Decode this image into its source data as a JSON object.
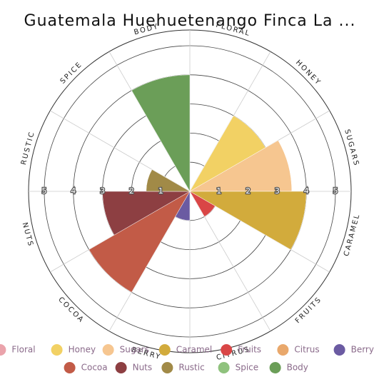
{
  "chart_data": {
    "type": "polar-area",
    "title": "Guatemala Huehuetenango Finca La ...",
    "categories": [
      "Floral",
      "Honey",
      "Sugars",
      "Caramel",
      "Fruits",
      "Citrus",
      "Berry",
      "Cocoa",
      "Nuts",
      "Rustic",
      "Spice",
      "Body"
    ],
    "values": [
      0,
      3,
      3.5,
      4,
      1,
      0,
      1,
      4,
      3,
      1.5,
      0,
      4
    ],
    "colors": [
      "#eaa3ab",
      "#f2d164",
      "#f6c690",
      "#d2ab3c",
      "#d94646",
      "#e9a86c",
      "#6b5ba2",
      "#c25b47",
      "#8d3f42",
      "#a18a47",
      "#8fc27d",
      "#6b9e58"
    ],
    "rlim": [
      0,
      5
    ],
    "rticks": [
      1,
      2,
      3,
      4,
      5
    ]
  }
}
